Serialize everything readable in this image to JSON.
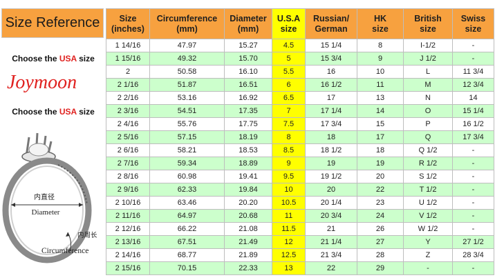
{
  "left_panel": {
    "title": "Size Reference",
    "choose_prefix": "Choose the ",
    "choose_highlight": "USA",
    "choose_suffix": " size",
    "brand": "Joymoon",
    "diagram": {
      "inner_cn": "内直径",
      "diameter": "Diameter",
      "circ_cn": "内周长",
      "circumference": "Circumference"
    }
  },
  "table": {
    "headers": [
      {
        "line1": "Size",
        "line2": "(inches)"
      },
      {
        "line1": "Circumference",
        "line2": "(mm)"
      },
      {
        "line1": "Diameter",
        "line2": "(mm)"
      },
      {
        "line1": "U.S.A",
        "line2": "size"
      },
      {
        "line1": "Russian/",
        "line2": "German"
      },
      {
        "line1": "HK",
        "line2": "size"
      },
      {
        "line1": "British",
        "line2": "size"
      },
      {
        "line1": "Swiss",
        "line2": "size"
      }
    ],
    "rows": [
      [
        "1 14/16",
        "47.97",
        "15.27",
        "4.5",
        "15 1/4",
        "8",
        "I-1/2",
        "-"
      ],
      [
        "1 15/16",
        "49.32",
        "15.70",
        "5",
        "15 3/4",
        "9",
        "J 1/2",
        "-"
      ],
      [
        "2",
        "50.58",
        "16.10",
        "5.5",
        "16",
        "10",
        "L",
        "11 3/4"
      ],
      [
        "2 1/16",
        "51.87",
        "16.51",
        "6",
        "16 1/2",
        "11",
        "M",
        "12 3/4"
      ],
      [
        "2 2/16",
        "53.16",
        "16.92",
        "6.5",
        "17",
        "13",
        "N",
        "14"
      ],
      [
        "2 3/16",
        "54.51",
        "17.35",
        "7",
        "17 1/4",
        "14",
        "O",
        "15 1/4"
      ],
      [
        "2 4/16",
        "55.76",
        "17.75",
        "7.5",
        "17 3/4",
        "15",
        "P",
        "16 1/2"
      ],
      [
        "2 5/16",
        "57.15",
        "18.19",
        "8",
        "18",
        "17",
        "Q",
        "17 3/4"
      ],
      [
        "2 6/16",
        "58.21",
        "18.53",
        "8.5",
        "18 1/2",
        "18",
        "Q 1/2",
        "-"
      ],
      [
        "2 7/16",
        "59.34",
        "18.89",
        "9",
        "19",
        "19",
        "R 1/2",
        "-"
      ],
      [
        "2 8/16",
        "60.98",
        "19.41",
        "9.5",
        "19 1/2",
        "20",
        "S 1/2",
        "-"
      ],
      [
        "2 9/16",
        "62.33",
        "19.84",
        "10",
        "20",
        "22",
        "T 1/2",
        "-"
      ],
      [
        "2 10/16",
        "63.46",
        "20.20",
        "10.5",
        "20 1/4",
        "23",
        "U 1/2",
        "-"
      ],
      [
        "2 11/16",
        "64.97",
        "20.68",
        "11",
        "20 3/4",
        "24",
        "V 1/2",
        "-"
      ],
      [
        "2 12/16",
        "66.22",
        "21.08",
        "11.5",
        "21",
        "26",
        "W 1/2",
        "-"
      ],
      [
        "2 13/16",
        "67.51",
        "21.49",
        "12",
        "21 1/4",
        "27",
        "Y",
        "27 1/2"
      ],
      [
        "2 14/16",
        "68.77",
        "21.89",
        "12.5",
        "21 3/4",
        "28",
        "Z",
        "28 3/4"
      ],
      [
        "2 15/16",
        "70.15",
        "22.33",
        "13",
        "22",
        "29",
        "-",
        "-"
      ]
    ]
  },
  "colors": {
    "header_orange": "#f7a13f",
    "usa_yellow": "#ffff00",
    "row_green": "#ccffcc",
    "accent_red": "#e0211f"
  }
}
